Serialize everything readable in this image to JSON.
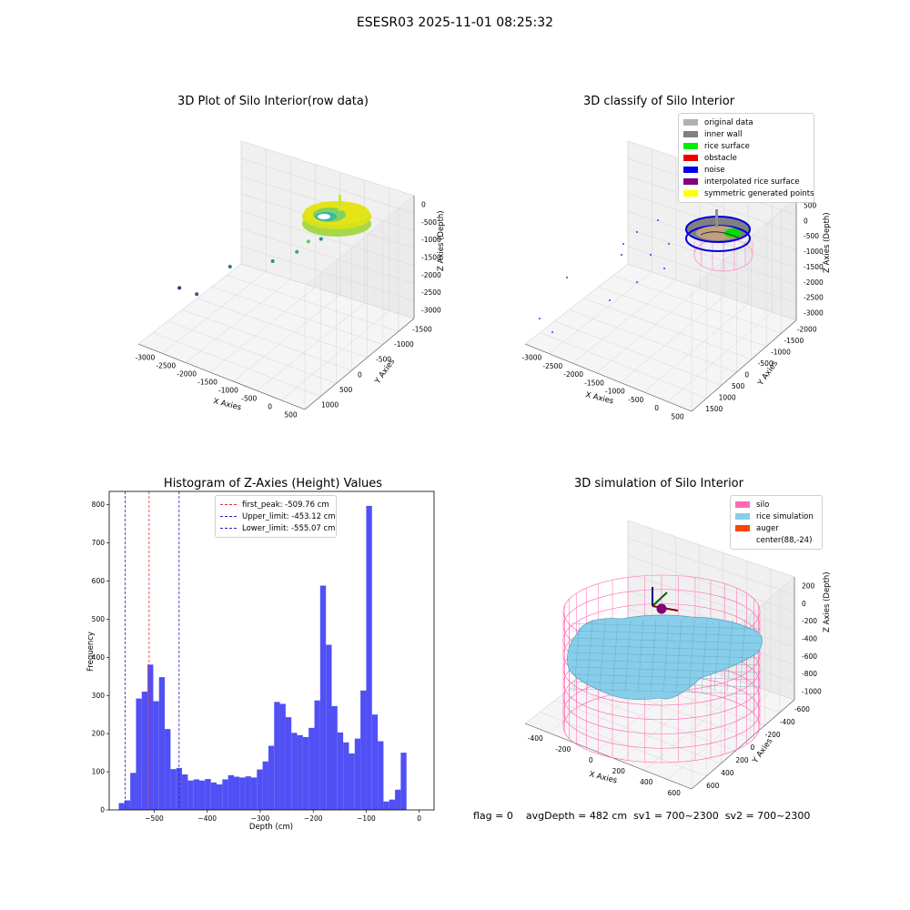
{
  "figure_title": "ESESR03 2025-11-01 08:25:32",
  "footer": {
    "flag": "flag = 0",
    "avg_depth": "avgDepth = 482 cm",
    "sv1": "sv1 = 700~2300",
    "sv2": "sv2 = 700~2300"
  },
  "colors": {
    "histogram_bar": "#5050f5",
    "first_peak": "#e03030",
    "limit": "#2020c0",
    "silo": "#ff69b4",
    "rice": "#87ceeb",
    "auger": "#ff4500",
    "noise": "#0000ee",
    "rice_surface": "#00ee00",
    "inner_wall": "#808080"
  },
  "chart_data": [
    {
      "type": "scatter",
      "title": "3D Plot of Silo Interior(row data)",
      "xlabel": "X Axies",
      "ylabel": "Y Axies",
      "zlabel": "Z Axies (Depth)",
      "x_ticks": [
        "-3000",
        "-2500",
        "-2000",
        "-1500",
        "-1000",
        "-500",
        "0",
        "500"
      ],
      "y_ticks": [
        "1000",
        "500",
        "0",
        "-500",
        "-1000",
        "-1500"
      ],
      "z_ticks": [
        "0",
        "-500",
        "-1000",
        "-1500",
        "-2000",
        "-2500",
        "-3000"
      ],
      "colormap": "viridis",
      "scattered_points": [
        {
          "x": -2950,
          "y": 700,
          "z": -2800
        },
        {
          "x": -2650,
          "y": 600,
          "z": -2900
        },
        {
          "x": -2300,
          "y": 100,
          "z": -2300
        },
        {
          "x": -1600,
          "y": -200,
          "z": -2000
        },
        {
          "x": -1300,
          "y": -500,
          "z": -1800
        },
        {
          "x": -1200,
          "y": -700,
          "z": -1600
        },
        {
          "x": -1000,
          "y": -800,
          "z": -1500
        },
        {
          "x": -800,
          "y": -900,
          "z": -1300
        },
        {
          "x": -600,
          "y": -1000,
          "z": -1200
        },
        {
          "x": -900,
          "y": -1100,
          "z": -1300
        }
      ]
    },
    {
      "type": "scatter",
      "title": "3D classify of Silo Interior",
      "xlabel": "X Axies",
      "ylabel": "Y Axies",
      "zlabel": "Z Axies (Depth)",
      "x_ticks": [
        "-3000",
        "-2500",
        "-2000",
        "-1500",
        "-1000",
        "-500",
        "0",
        "500"
      ],
      "y_ticks": [
        "1500",
        "1000",
        "500",
        "0",
        "-500",
        "-1000",
        "-1500",
        "-2000"
      ],
      "z_ticks": [
        "500",
        "0",
        "-500",
        "-1000",
        "-1500",
        "-2000",
        "-2500",
        "-3000"
      ],
      "legend": [
        {
          "label": "original data",
          "color": "#b0b0b0"
        },
        {
          "label": "inner wall",
          "color": "#808080"
        },
        {
          "label": "rice surface",
          "color": "#00ee00"
        },
        {
          "label": "obstacle",
          "color": "#ee0000"
        },
        {
          "label": "noise",
          "color": "#0000ee"
        },
        {
          "label": "interpolated rice surface",
          "color": "#800080"
        },
        {
          "label": "symmetric generated points",
          "color": "#ffff00"
        }
      ],
      "legend_position": "top-right"
    },
    {
      "type": "bar",
      "title": "Histogram of Z-Axies (Height) Values",
      "xlabel": "Depth (cm)",
      "ylabel": "Frequency",
      "xlim": [
        -585,
        28
      ],
      "ylim": [
        0,
        835
      ],
      "x_ticks": [
        -500,
        -400,
        -300,
        -200,
        -100,
        0
      ],
      "y_ticks": [
        0,
        100,
        200,
        300,
        400,
        500,
        600,
        700,
        800
      ],
      "bin_start": -567,
      "bin_width": 10.86,
      "values": [
        18,
        25,
        97,
        292,
        310,
        381,
        285,
        348,
        212,
        107,
        110,
        93,
        77,
        80,
        77,
        81,
        72,
        67,
        80,
        91,
        87,
        85,
        88,
        85,
        106,
        127,
        168,
        283,
        278,
        243,
        202,
        196,
        191,
        215,
        287,
        588,
        433,
        272,
        203,
        177,
        148,
        187,
        313,
        797,
        250,
        180,
        22,
        27,
        53,
        150
      ],
      "reference_lines": [
        {
          "label": "first_peak: -509.76 cm",
          "x": -509.76,
          "color": "#e03030"
        },
        {
          "label": "Upper_limit: -453.12 cm",
          "x": -453.12,
          "color": "#2020c0"
        },
        {
          "label": "Lower_limit: -555.07 cm",
          "x": -555.07,
          "color": "#2020c0"
        }
      ],
      "legend_position": "top-center",
      "grid": false
    },
    {
      "type": "scatter",
      "title": "3D simulation of Silo Interior",
      "xlabel": "X Axies",
      "ylabel": "Y Axies",
      "zlabel": "Z Axies (Depth)",
      "x_ticks": [
        "-400",
        "-200",
        "0",
        "200",
        "400",
        "600"
      ],
      "y_ticks": [
        "600",
        "400",
        "200",
        "0",
        "-200",
        "-400",
        "-600"
      ],
      "z_ticks": [
        "200",
        "0",
        "-200",
        "-400",
        "-600",
        "-800",
        "-1000"
      ],
      "legend": [
        {
          "label": "silo",
          "color": "#ff69b4"
        },
        {
          "label": "rice simulation",
          "color": "#87ceeb"
        },
        {
          "label": "auger",
          "color": "#ff4500"
        },
        {
          "label": "center(88,-24)",
          "color": "#ffffff"
        }
      ],
      "legend_position": "top-right"
    }
  ]
}
